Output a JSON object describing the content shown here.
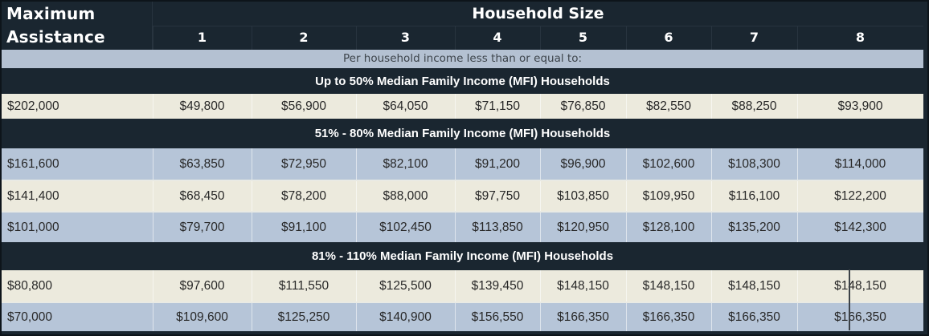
{
  "table": {
    "header": {
      "line1": "Maximum",
      "line2": "Assistance",
      "household_size": "Household Size",
      "columns": [
        "1",
        "2",
        "3",
        "4",
        "5",
        "6",
        "7",
        "8"
      ]
    },
    "subheader": "Per household income less than or equal to:",
    "sections": [
      {
        "title": "Up to 50% Median Family Income (MFI) Households",
        "rows": [
          {
            "assistance": "$202,000",
            "shade": "cream",
            "values": [
              "$49,800",
              "$56,900",
              "$64,050",
              "$71,150",
              "$76,850",
              "$82,550",
              "$88,250",
              "$93,900"
            ]
          }
        ]
      },
      {
        "title": "51% - 80% Median Family Income (MFI) Households",
        "rows": [
          {
            "assistance": "$161,600",
            "shade": "blue",
            "values": [
              "$63,850",
              "$72,950",
              "$82,100",
              "$91,200",
              "$96,900",
              "$102,600",
              "$108,300",
              "$114,000"
            ]
          },
          {
            "assistance": "$141,400",
            "shade": "cream",
            "values": [
              "$68,450",
              "$78,200",
              "$88,000",
              "$97,750",
              "$103,850",
              "$109,950",
              "$116,100",
              "$122,200"
            ]
          },
          {
            "assistance": "$101,000",
            "shade": "blue",
            "values": [
              "$79,700",
              "$91,100",
              "$102,450",
              "$113,850",
              "$120,950",
              "$128,100",
              "$135,200",
              "$142,300"
            ]
          }
        ]
      },
      {
        "title": "81% - 110% Median Family Income (MFI) Households",
        "rows": [
          {
            "assistance": "$80,800",
            "shade": "cream",
            "values": [
              "$97,600",
              "$111,550",
              "$125,500",
              "$139,450",
              "$148,150",
              "$148,150",
              "$148,150",
              "$148,150"
            ]
          },
          {
            "assistance": "$70,000",
            "shade": "blue",
            "values": [
              "$109,600",
              "$125,250",
              "$140,900",
              "$156,550",
              "$166,350",
              "$166,350",
              "$166,350",
              "$166,350"
            ]
          }
        ]
      }
    ],
    "colors": {
      "dark_bg": "#1a2630",
      "blue_row": "#b6c5d8",
      "cream_row": "#eceadd",
      "band_bg": "#b4c1d2",
      "band_text": "#3d444b",
      "data_text": "#282828",
      "header_text": "#ffffff"
    }
  }
}
